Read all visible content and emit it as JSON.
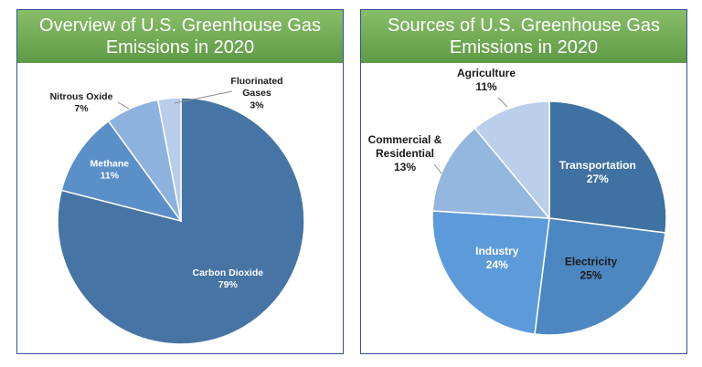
{
  "chart_data": [
    {
      "type": "pie",
      "title_lines": [
        "Overview of U.S. Greenhouse Gas",
        "Emissions in 2020"
      ],
      "slices": [
        {
          "label": "Carbon Dioxide",
          "value": 79,
          "value_text": "79%",
          "color": "#4674a4",
          "text_color": "#ffffff"
        },
        {
          "label": "Methane",
          "value": 11,
          "value_text": "11%",
          "color": "#5b8fc8",
          "text_color": "#ffffff"
        },
        {
          "label": "Nitrous Oxide",
          "value": 7,
          "value_text": "7%",
          "color": "#8cb2dd",
          "text_color": "#1a1a1a"
        },
        {
          "label": "Fluorinated Gases",
          "label_lines": [
            "Fluorinated",
            "Gases"
          ],
          "value": 3,
          "value_text": "3%",
          "color": "#b7cde9",
          "text_color": "#1a1a1a"
        }
      ]
    },
    {
      "type": "pie",
      "title_lines": [
        "Sources of U.S. Greenhouse Gas",
        "Emissions in 2020"
      ],
      "slices": [
        {
          "label": "Transportation",
          "value": 27,
          "value_text": "27%",
          "color": "#3f71a2",
          "text_color": "#ffffff"
        },
        {
          "label": "Electricity",
          "value": 25,
          "value_text": "25%",
          "color": "#4c87c1",
          "text_color": "#1a1a1a"
        },
        {
          "label": "Industry",
          "value": 24,
          "value_text": "24%",
          "color": "#5d9ada",
          "text_color": "#ffffff"
        },
        {
          "label": "Commercial & Residential",
          "label_lines": [
            "Commercial &",
            "Residential"
          ],
          "value": 13,
          "value_text": "13%",
          "color": "#94b7df",
          "text_color": "#1a1a1a"
        },
        {
          "label": "Agriculture",
          "value": 11,
          "value_text": "11%",
          "color": "#b9cfea",
          "text_color": "#1a1a1a"
        }
      ]
    }
  ]
}
